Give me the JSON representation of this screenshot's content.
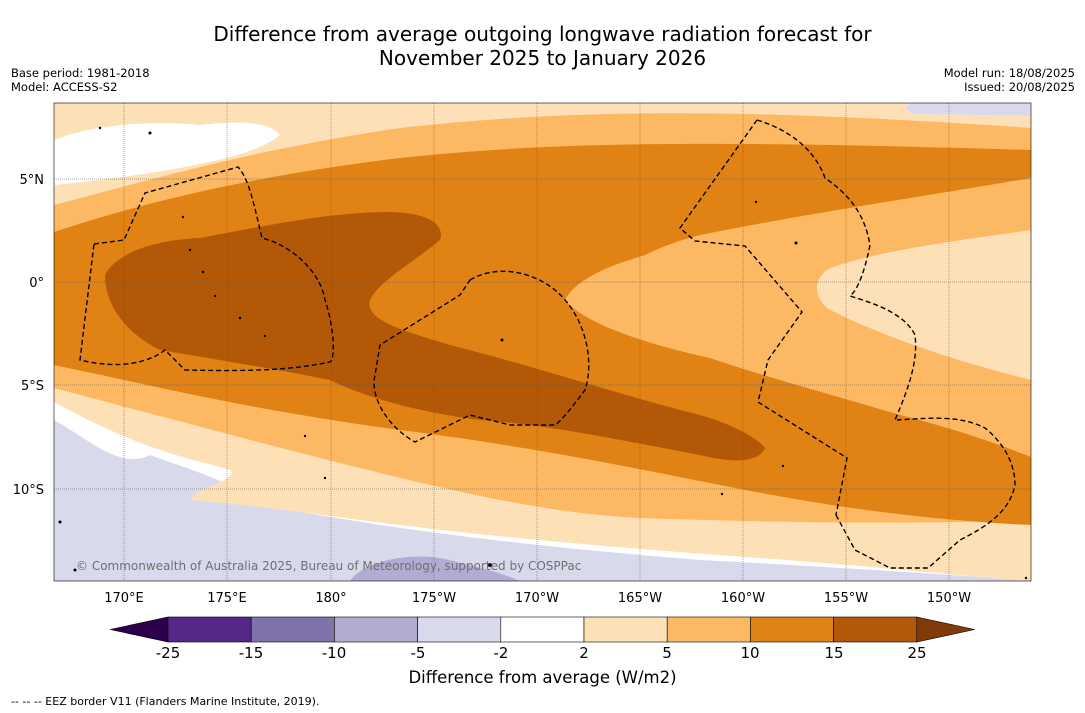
{
  "title_line1": "Difference from average outgoing longwave radiation forecast for",
  "title_line2": "November 2025 to January 2026",
  "base_period": "Base period: 1981-2018",
  "model": "Model: ACCESS-S2",
  "model_run": "Model run: 18/08/2025",
  "issued": "Issued: 20/08/2025",
  "copyright": "© Commonwealth of Australia 2025, Bureau of Meteorology, supported by COSPPac",
  "lat_labels": [
    "5°N",
    "0°",
    "5°S",
    "10°S"
  ],
  "lon_labels": [
    "170°E",
    "175°E",
    "180°",
    "175°W",
    "170°W",
    "165°W",
    "160°W",
    "155°W",
    "150°W"
  ],
  "colorbar": {
    "title": "Difference from average (W/m2)",
    "ticks": [
      "-25",
      "-15",
      "-10",
      "-5",
      "-2",
      "2",
      "5",
      "10",
      "15",
      "25"
    ],
    "colors": [
      "#2d004b",
      "#542788",
      "#8073ac",
      "#b2abd2",
      "#d8daeb",
      "#ffffff",
      "#fee0b6",
      "#fdb863",
      "#e08214",
      "#b35806",
      "#7f3b08"
    ]
  },
  "footer": "--  --  -- EEZ border V11 (Flanders Marine Institute, 2019)."
}
